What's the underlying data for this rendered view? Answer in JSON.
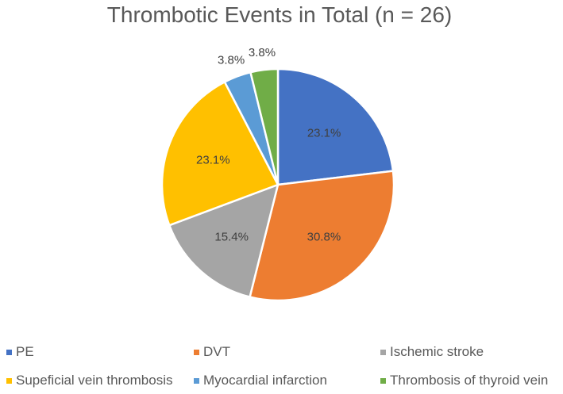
{
  "chart_data": {
    "type": "pie",
    "title": "Thrombotic Events in Total (n = 26)",
    "start_angle_deg": 0,
    "direction": "clockwise",
    "slices": [
      {
        "name": "PE",
        "value": 23.1,
        "label": "23.1%",
        "color": "#4472C4"
      },
      {
        "name": "DVT",
        "value": 30.8,
        "label": "30.8%",
        "color": "#ED7D31"
      },
      {
        "name": "Ischemic stroke",
        "value": 15.4,
        "label": "15.4%",
        "color": "#A5A5A5"
      },
      {
        "name": "Supeficial vein thrombosis",
        "value": 23.1,
        "label": "23.1%",
        "color": "#FFC000"
      },
      {
        "name": "Myocardial infarction",
        "value": 3.8,
        "label": "3.8%",
        "color": "#5B9BD5"
      },
      {
        "name": "Thrombosis of thyroid vein",
        "value": 3.8,
        "label": "3.8%",
        "color": "#70AD47"
      }
    ],
    "legend_position": "bottom"
  }
}
